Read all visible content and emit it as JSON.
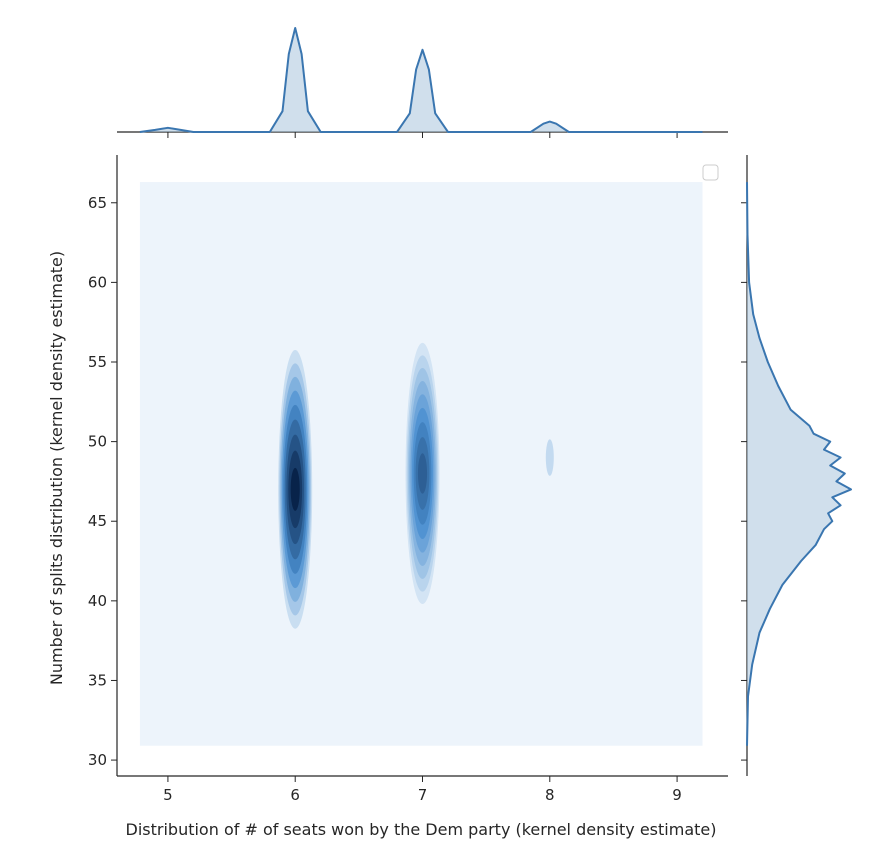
{
  "chart_data": {
    "type": "kde-jointplot",
    "xlabel": "Distribution of # of seats won by the Dem party (kernel density estimate)",
    "ylabel": "Number of splits distribution (kernel density estimate)",
    "xlim": [
      4.6,
      9.4
    ],
    "ylim": [
      29.0,
      68.0
    ],
    "x_ticks": [
      5,
      6,
      7,
      8,
      9
    ],
    "y_ticks": [
      30,
      35,
      40,
      45,
      50,
      55,
      60,
      65
    ],
    "grid": false,
    "legend": {
      "placement": "top-right",
      "entries": []
    },
    "colors": {
      "kde_line": "#3a76b0",
      "kde_fill": "#a9c4dc",
      "density_background": "#edf4fb",
      "density_mid": "#4a8fd0",
      "density_high": "#08234a",
      "axis": "#262626"
    },
    "joint_density_extent": {
      "x": [
        4.78,
        9.2
      ],
      "y": [
        30.9,
        66.3
      ]
    },
    "joint_density_clusters": [
      {
        "x": 6,
        "y_center": 47.0,
        "y_range": [
          38.8,
          56.3
        ],
        "peak_density": 1.0
      },
      {
        "x": 7,
        "y_center": 48.0,
        "y_range": [
          39.9,
          56.3
        ],
        "peak_density": 0.72
      },
      {
        "x": 8,
        "y_center": 49.0,
        "y_range": [
          48.0,
          50.3
        ],
        "peak_density": 0.08
      }
    ],
    "x_marginal": {
      "x": [
        4.78,
        4.9,
        5.0,
        5.1,
        5.2,
        5.8,
        5.9,
        5.95,
        6.0,
        6.05,
        6.1,
        6.2,
        6.8,
        6.9,
        6.95,
        7.0,
        7.05,
        7.1,
        7.2,
        7.85,
        7.95,
        8.0,
        8.05,
        8.15,
        8.5,
        9.2
      ],
      "density": [
        0.0,
        0.02,
        0.04,
        0.02,
        0.0,
        0.0,
        0.2,
        0.75,
        1.0,
        0.75,
        0.2,
        0.0,
        0.0,
        0.18,
        0.6,
        0.79,
        0.6,
        0.18,
        0.0,
        0.0,
        0.08,
        0.1,
        0.08,
        0.0,
        0.0,
        0.0
      ]
    },
    "y_marginal": {
      "y": [
        30.9,
        34.0,
        36.0,
        38.0,
        39.5,
        41.0,
        42.5,
        43.5,
        44.5,
        45.0,
        45.5,
        46.0,
        46.5,
        47.0,
        47.5,
        48.0,
        48.5,
        49.0,
        49.5,
        50.0,
        50.5,
        51.0,
        52.0,
        53.5,
        55.0,
        56.5,
        58.0,
        60.0,
        63.0,
        66.3
      ],
      "density": [
        0.0,
        0.01,
        0.05,
        0.12,
        0.22,
        0.34,
        0.52,
        0.66,
        0.74,
        0.82,
        0.78,
        0.9,
        0.82,
        1.0,
        0.86,
        0.94,
        0.8,
        0.9,
        0.74,
        0.8,
        0.64,
        0.6,
        0.42,
        0.3,
        0.2,
        0.12,
        0.06,
        0.02,
        0.005,
        0.0
      ]
    }
  }
}
